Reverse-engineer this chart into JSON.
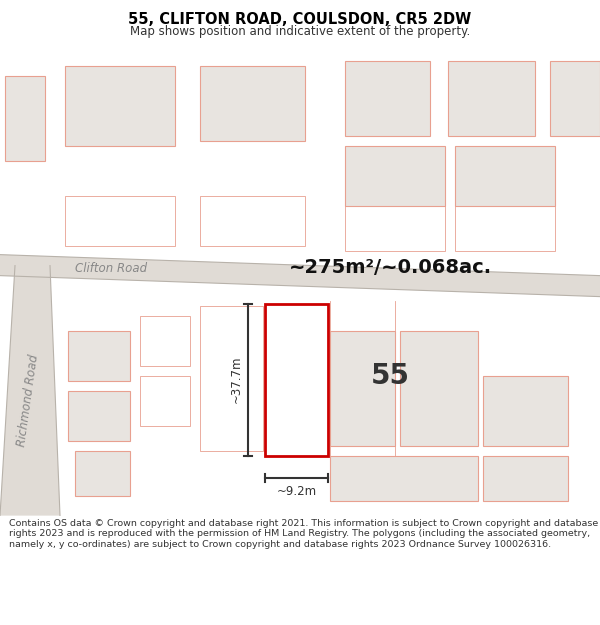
{
  "title": "55, CLIFTON ROAD, COULSDON, CR5 2DW",
  "subtitle": "Map shows position and indicative extent of the property.",
  "area_text": "~275m²/~0.068ac.",
  "label_55": "55",
  "dim_width": "~9.2m",
  "dim_height": "~37.7m",
  "road_label_clifton": "Clifton Road",
  "road_label_richmond": "Richmond Road",
  "footer": "Contains OS data © Crown copyright and database right 2021. This information is subject to Crown copyright and database rights 2023 and is reproduced with the permission of HM Land Registry. The polygons (including the associated geometry, namely x, y co-ordinates) are subject to Crown copyright and database rights 2023 Ordnance Survey 100026316.",
  "bg_color": "#ffffff",
  "map_bg": "#ffffff",
  "road_fill": "#e0dbd5",
  "road_edge": "#c8c2bb",
  "building_fill": "#e8e4e0",
  "building_edge": "#e8a090",
  "highlight_fill": "#ffffff",
  "highlight_edge": "#cc0000",
  "title_color": "#000000",
  "subtitle_color": "#333333",
  "footer_color": "#333333",
  "dim_color": "#333333",
  "road_label_color": "#888888",
  "area_color": "#111111"
}
